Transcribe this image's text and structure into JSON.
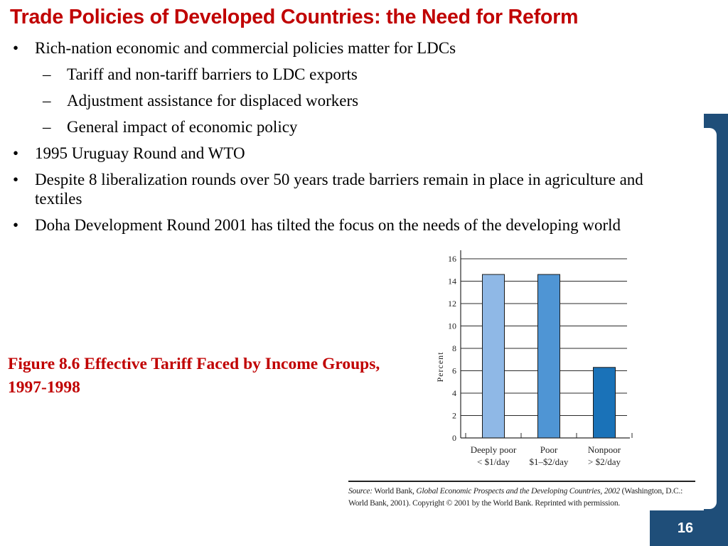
{
  "title": "Trade Policies of Developed Countries: the Need for Reform",
  "bullets": [
    {
      "level": 1,
      "text": "Rich-nation economic and commercial policies matter for LDCs"
    },
    {
      "level": 2,
      "text": "Tariff and non-tariff barriers to LDC exports"
    },
    {
      "level": 2,
      "text": "Adjustment assistance for displaced workers"
    },
    {
      "level": 2,
      "text": "General impact of economic policy"
    },
    {
      "level": 1,
      "text": "1995 Uruguay Round and WTO"
    },
    {
      "level": 1,
      "text": "Despite 8 liberalization rounds over 50 years trade barriers remain in place in agriculture and textiles"
    },
    {
      "level": 1,
      "text": "Doha Development Round 2001 has tilted the focus on the needs of the developing world"
    }
  ],
  "bullet_symbols": {
    "level1": "•",
    "level2": "–"
  },
  "caption": "Figure 8.6 Effective Tariff Faced by Income Groups, 1997-1998",
  "chart_data": {
    "type": "bar",
    "categories": [
      {
        "line1": "Deeply poor",
        "line2": "< $1/day"
      },
      {
        "line1": "Poor",
        "line2": "$1–$2/day"
      },
      {
        "line1": "Nonpoor",
        "line2": "> $2/day"
      }
    ],
    "values": [
      14.6,
      14.6,
      6.3
    ],
    "bar_colors": [
      "#8fb8e6",
      "#4f95d4",
      "#1a72b8"
    ],
    "ylabel": "Percent",
    "xlabel": "",
    "ylim": [
      0,
      16
    ],
    "yticks": [
      "0",
      "2",
      "4",
      "6",
      "8",
      "10",
      "12",
      "14",
      "16"
    ],
    "grid": true
  },
  "source": {
    "label": "Source:",
    "text_a": " World Bank, ",
    "title": "Global Economic Prospects and the Developing Countries, 2002",
    "text_b": " (Washington, D.C.: World Bank, 2001). Copyright © 2001 by the World Bank. Reprinted with permission."
  },
  "page_number": "16"
}
